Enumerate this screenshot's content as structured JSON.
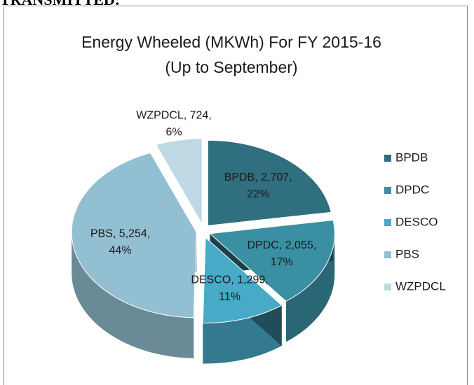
{
  "page_header": "TRANSMITTED:",
  "chart_data": {
    "type": "pie",
    "title": [
      "Energy  Wheeled (MKWh) For FY 2015-16",
      "(Up to September)"
    ],
    "categories": [
      "BPDB",
      "DPDC",
      "DESCO",
      "PBS",
      "WZPDCL"
    ],
    "values": [
      2707,
      2055,
      1299,
      5254,
      724
    ],
    "value_labels": [
      [
        "BPDB, 2,707,",
        "22%"
      ],
      [
        "DPDC, 2,055,",
        "17%"
      ],
      [
        "DESCO, 1,299,",
        "11%"
      ],
      [
        "PBS, 5,254,",
        "44%"
      ],
      [
        "WZPDCL, 724,",
        "6%"
      ]
    ],
    "colors": [
      "#2f6f7f",
      "#3a8fa2",
      "#47aac6",
      "#93bfd2",
      "#bfd9e4"
    ],
    "legend": "right"
  }
}
